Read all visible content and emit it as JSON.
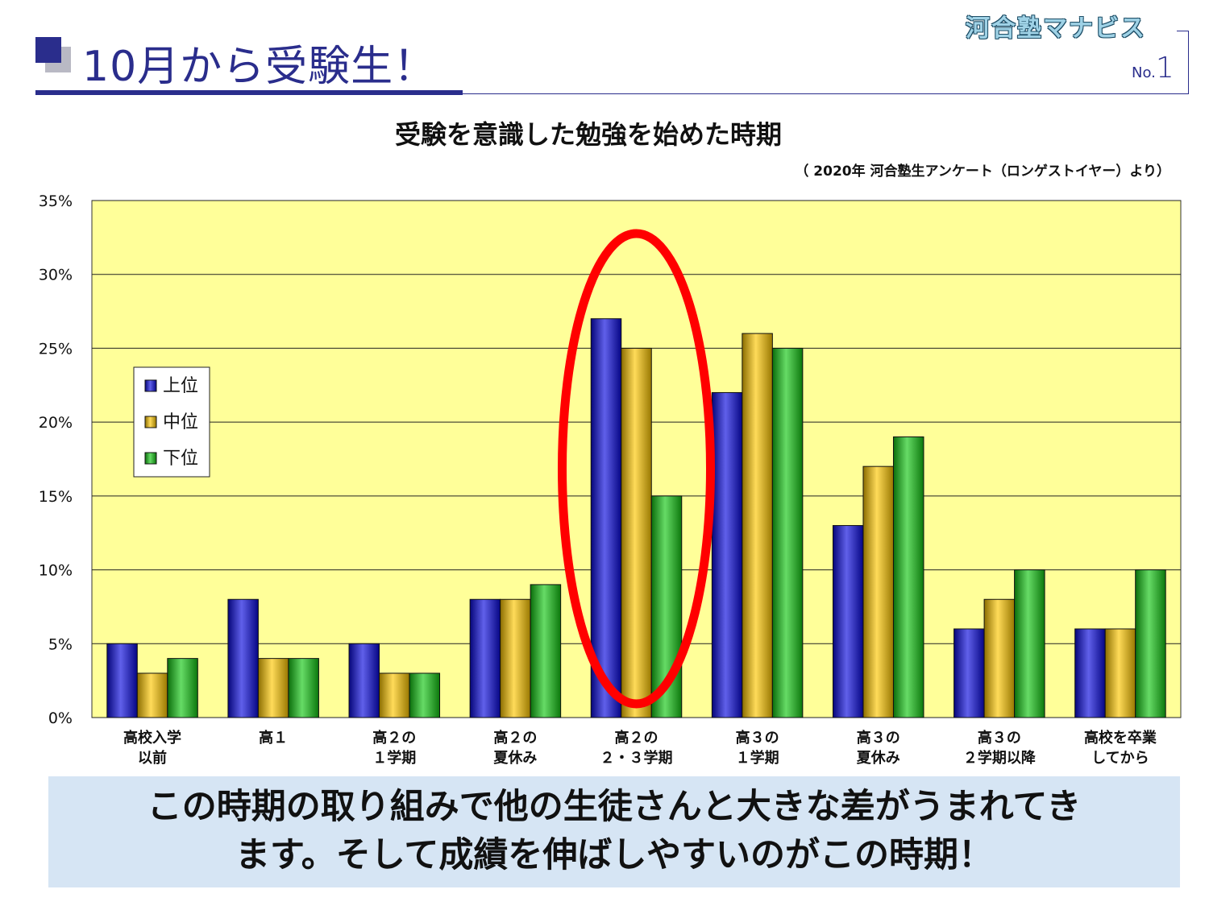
{
  "header": {
    "title": "10月から受験生！",
    "brand": "河合塾マナビス",
    "page_no_label": "No.",
    "page_no_value": "1"
  },
  "chart_data": {
    "type": "bar",
    "title": "受験を意識した勉強を始めた時期",
    "source": "（ 2020年  河合塾生アンケート（ロンゲストイヤー）より）",
    "categories": [
      [
        "高校入学",
        "以前"
      ],
      [
        "高１"
      ],
      [
        "高２の",
        "１学期"
      ],
      [
        "高２の",
        "夏休み"
      ],
      [
        "高２の",
        "２・３学期"
      ],
      [
        "高３の",
        "１学期"
      ],
      [
        "高３の",
        "夏休み"
      ],
      [
        "高３の",
        "２学期以降"
      ],
      [
        "高校を卒業",
        "してから"
      ]
    ],
    "series": [
      {
        "name": "上位",
        "color": "#0a0ade",
        "values": [
          5,
          8,
          5,
          8,
          27,
          22,
          13,
          6,
          6
        ]
      },
      {
        "name": "中位",
        "color": "#ffc800",
        "values": [
          3,
          4,
          3,
          8,
          25,
          26,
          17,
          8,
          6
        ]
      },
      {
        "name": "下位",
        "color": "#14c814",
        "values": [
          4,
          4,
          3,
          9,
          15,
          25,
          19,
          10,
          10
        ]
      }
    ],
    "y_ticks": [
      "0%",
      "5%",
      "10%",
      "15%",
      "20%",
      "25%",
      "30%",
      "35%"
    ],
    "ylim": [
      0,
      35
    ],
    "grid": true,
    "plot_background": "#ffff99",
    "legend": {
      "placement": "left"
    },
    "highlight": {
      "category_index": 4,
      "shape": "ellipse",
      "color": "#ff0000"
    }
  },
  "callout": {
    "line1": "この時期の取り組みで他の生徒さんと大きな差がうまれてき",
    "line2": "ます。そして成績を伸ばしやすいのがこの時期！"
  }
}
